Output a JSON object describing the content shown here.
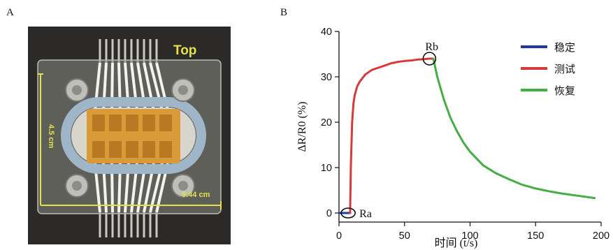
{
  "panels": {
    "a_label": "A",
    "b_label": "B"
  },
  "photo": {
    "top_label": "Top",
    "height_label": "4.5 cm",
    "width_label": "5.44 cm",
    "colors": {
      "background": "#2b2a28",
      "sensor": "#d99a3a",
      "ring": "#9fb6c9",
      "accent_text": "#e3e04a"
    }
  },
  "chart_data": {
    "type": "line",
    "xlabel": "时间 (t/s)",
    "ylabel": "ΔR/R0 (%)",
    "xlim": [
      0,
      200
    ],
    "ylim": [
      -2,
      40
    ],
    "xticks": [
      0,
      50,
      100,
      150,
      200
    ],
    "yticks": [
      0,
      10,
      20,
      30,
      40
    ],
    "grid": false,
    "legend_position": "top-right",
    "series": [
      {
        "name": "稳定",
        "color": "#1f3b9c",
        "x": [
          0,
          2,
          4,
          6,
          8,
          8.5
        ],
        "y": [
          0,
          0,
          0,
          0,
          0,
          0
        ]
      },
      {
        "name": "测试",
        "color": "#d63a3a",
        "x": [
          8.5,
          9,
          10,
          11,
          12,
          14,
          16,
          20,
          25,
          30,
          35,
          40,
          45,
          50,
          55,
          60,
          65,
          69,
          72
        ],
        "y": [
          0,
          10,
          20,
          24,
          26,
          28,
          29,
          30.5,
          31.5,
          32,
          32.5,
          33,
          33.3,
          33.5,
          33.6,
          33.8,
          33.9,
          34,
          34
        ]
      },
      {
        "name": "恢复",
        "color": "#44ad44",
        "x": [
          72,
          75,
          80,
          85,
          90,
          95,
          100,
          110,
          120,
          130,
          140,
          150,
          160,
          170,
          180,
          190,
          195
        ],
        "y": [
          34,
          30,
          25,
          21,
          18,
          15.5,
          13.5,
          10.5,
          8.7,
          7.4,
          6.2,
          5.4,
          4.8,
          4.3,
          3.9,
          3.5,
          3.3
        ]
      }
    ],
    "annotations": [
      {
        "text": "Ra",
        "x": 7,
        "y": 0
      },
      {
        "text": "Rb",
        "x": 69,
        "y": 34
      }
    ]
  }
}
